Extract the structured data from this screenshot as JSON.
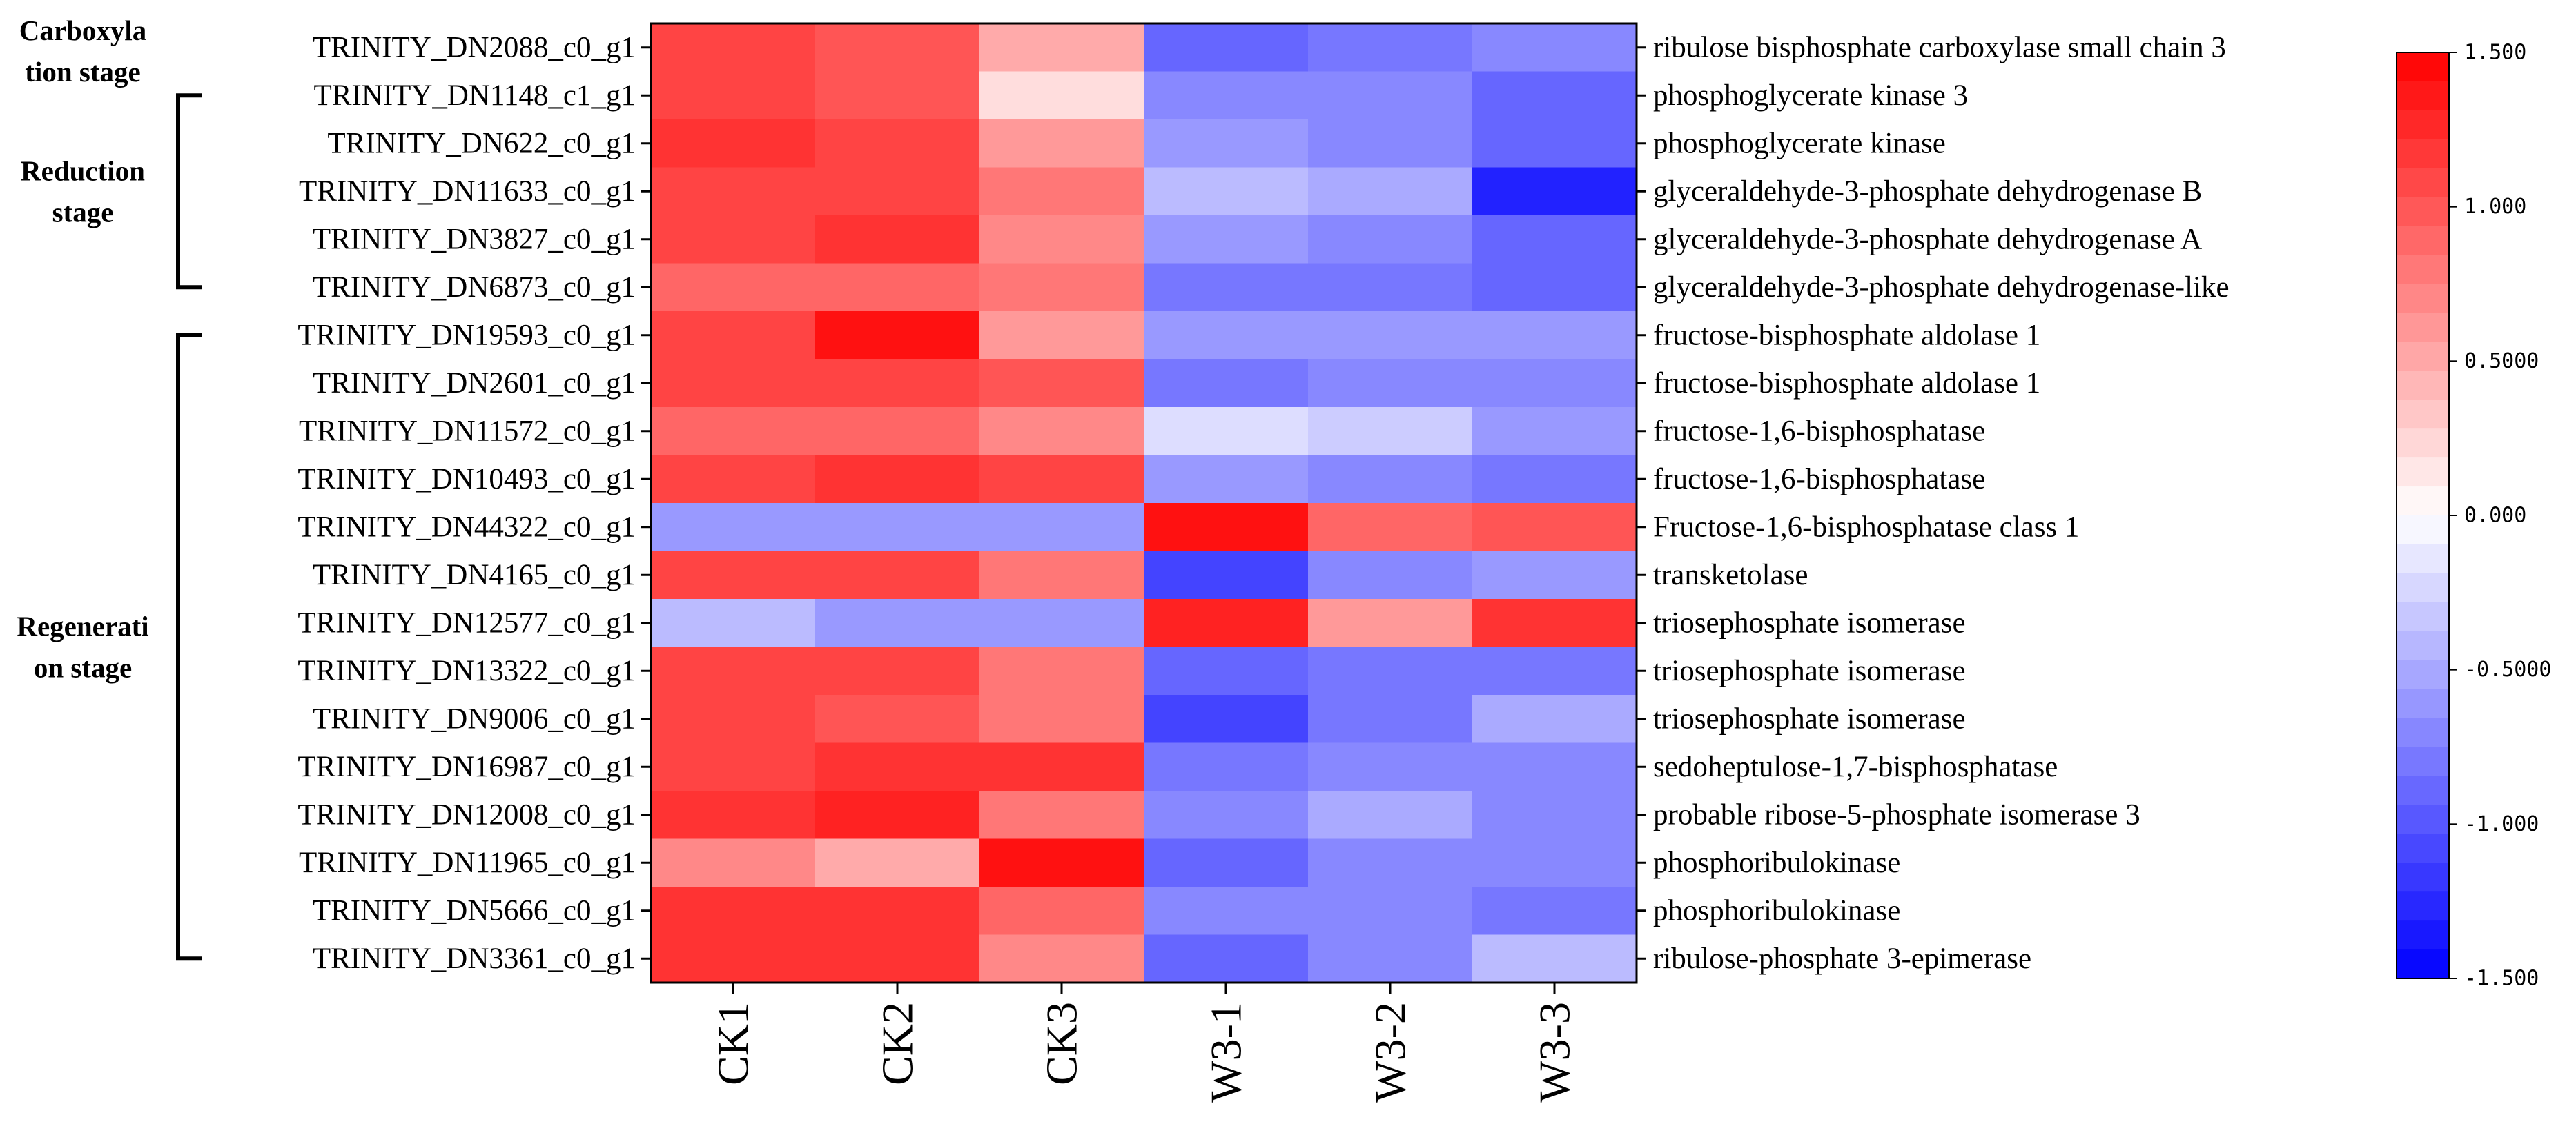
{
  "chart_data": {
    "type": "heatmap",
    "columns": [
      "CK1",
      "CK2",
      "CK3",
      "W3-1",
      "W3-2",
      "W3-3"
    ],
    "rows": [
      {
        "gene": "TRINITY_DN2088_c0_g1",
        "annotation": "ribulose bisphosphate carboxylase small chain 3",
        "values": [
          1.1,
          1.0,
          0.5,
          -0.9,
          -0.8,
          -0.7
        ]
      },
      {
        "gene": "TRINITY_DN1148_c1_g1",
        "annotation": "phosphoglycerate kinase 3",
        "values": [
          1.1,
          1.0,
          0.2,
          -0.7,
          -0.7,
          -0.9
        ]
      },
      {
        "gene": "TRINITY_DN622_c0_g1",
        "annotation": "phosphoglycerate kinase",
        "values": [
          1.2,
          1.1,
          0.6,
          -0.6,
          -0.7,
          -0.9
        ]
      },
      {
        "gene": "TRINITY_DN11633_c0_g1",
        "annotation": "glyceraldehyde-3-phosphate dehydrogenase B",
        "values": [
          1.1,
          1.1,
          0.8,
          -0.4,
          -0.5,
          -1.3
        ]
      },
      {
        "gene": "TRINITY_DN3827_c0_g1",
        "annotation": "glyceraldehyde-3-phosphate dehydrogenase A",
        "values": [
          1.1,
          1.2,
          0.7,
          -0.6,
          -0.7,
          -0.9
        ]
      },
      {
        "gene": "TRINITY_DN6873_c0_g1",
        "annotation": "glyceraldehyde-3-phosphate dehydrogenase-like",
        "values": [
          0.9,
          0.9,
          0.8,
          -0.8,
          -0.8,
          -0.9
        ]
      },
      {
        "gene": "TRINITY_DN19593_c0_g1",
        "annotation": "fructose-bisphosphate aldolase 1",
        "values": [
          1.1,
          1.4,
          0.6,
          -0.6,
          -0.6,
          -0.6
        ]
      },
      {
        "gene": "TRINITY_DN2601_c0_g1",
        "annotation": "fructose-bisphosphate aldolase 1",
        "values": [
          1.1,
          1.1,
          1.0,
          -0.8,
          -0.7,
          -0.7
        ]
      },
      {
        "gene": "TRINITY_DN11572_c0_g1",
        "annotation": "fructose-1,6-bisphosphatase",
        "values": [
          0.9,
          0.9,
          0.7,
          -0.2,
          -0.3,
          -0.6
        ]
      },
      {
        "gene": "TRINITY_DN10493_c0_g1",
        "annotation": "fructose-1,6-bisphosphatase",
        "values": [
          1.1,
          1.2,
          1.1,
          -0.6,
          -0.7,
          -0.8
        ]
      },
      {
        "gene": "TRINITY_DN44322_c0_g1",
        "annotation": "Fructose-1,6-bisphosphatase class 1",
        "values": [
          -0.6,
          -0.6,
          -0.6,
          1.4,
          0.9,
          1.0
        ]
      },
      {
        "gene": "TRINITY_DN4165_c0_g1",
        "annotation": "transketolase",
        "values": [
          1.1,
          1.1,
          0.8,
          -1.1,
          -0.7,
          -0.6
        ]
      },
      {
        "gene": "TRINITY_DN12577_c0_g1",
        "annotation": "triosephosphate isomerase",
        "values": [
          -0.4,
          -0.6,
          -0.6,
          1.3,
          0.6,
          1.2
        ]
      },
      {
        "gene": "TRINITY_DN13322_c0_g1",
        "annotation": "triosephosphate isomerase",
        "values": [
          1.1,
          1.1,
          0.8,
          -0.9,
          -0.8,
          -0.8
        ]
      },
      {
        "gene": "TRINITY_DN9006_c0_g1",
        "annotation": "triosephosphate isomerase",
        "values": [
          1.1,
          1.0,
          0.8,
          -1.1,
          -0.8,
          -0.5
        ]
      },
      {
        "gene": "TRINITY_DN16987_c0_g1",
        "annotation": "sedoheptulose-1,7-bisphosphatase",
        "values": [
          1.1,
          1.2,
          1.2,
          -0.8,
          -0.7,
          -0.7
        ]
      },
      {
        "gene": "TRINITY_DN12008_c0_g1",
        "annotation": "probable ribose-5-phosphate isomerase 3",
        "values": [
          1.2,
          1.3,
          0.8,
          -0.7,
          -0.5,
          -0.7
        ]
      },
      {
        "gene": "TRINITY_DN11965_c0_g1",
        "annotation": "phosphoribulokinase",
        "values": [
          0.7,
          0.5,
          1.4,
          -0.9,
          -0.7,
          -0.7
        ]
      },
      {
        "gene": "TRINITY_DN5666_c0_g1",
        "annotation": "phosphoribulokinase",
        "values": [
          1.2,
          1.2,
          0.9,
          -0.7,
          -0.7,
          -0.8
        ]
      },
      {
        "gene": "TRINITY_DN3361_c0_g1",
        "annotation": "ribulose-phosphate 3-epimerase",
        "values": [
          1.2,
          1.2,
          0.7,
          -0.9,
          -0.7,
          -0.4
        ]
      }
    ],
    "groups": [
      {
        "label_lines": [
          "Carboxyla",
          "tion stage"
        ],
        "rows": [
          0,
          0
        ]
      },
      {
        "label_lines": [
          "Reduction",
          "stage"
        ],
        "rows": [
          1,
          5
        ]
      },
      {
        "label_lines": [
          "Regenerati",
          "on stage"
        ],
        "rows": [
          6,
          19
        ]
      }
    ],
    "colorbar": {
      "range": [
        -1.5,
        1.5
      ],
      "tick_values": [
        1.5,
        1.0,
        0.5,
        0.0,
        -0.5,
        -1.0,
        -1.5
      ],
      "tick_labels": [
        "1.500",
        "1.000",
        "0.5000",
        "0.000",
        "-0.5000",
        "-1.000",
        "-1.500"
      ],
      "high_color": "#ff0000",
      "mid_color": "#ffffff",
      "low_color": "#0000ff",
      "steps": 32
    }
  }
}
